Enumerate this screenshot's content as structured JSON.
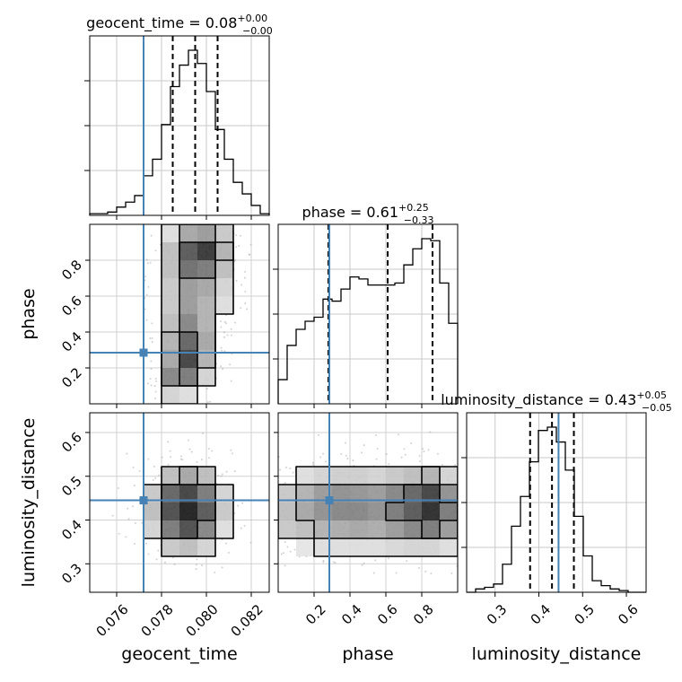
{
  "chart_data": {
    "type": "corner",
    "parameters": [
      "geocent_time",
      "phase",
      "luminosity_distance"
    ],
    "injection": {
      "geocent_time": 0.0772,
      "phase": 0.285,
      "luminosity_distance": 0.445
    },
    "truth_color": "#4682b4",
    "grid": true,
    "titles": {
      "geocent_time": {
        "name": "geocent_time",
        "value": "0.08",
        "plus": "+0.00",
        "minus": "−0.00"
      },
      "phase": {
        "name": "phase",
        "value": "0.61",
        "plus": "+0.25",
        "minus": "−0.33"
      },
      "luminosity_distance": {
        "name": "luminosity_distance",
        "value": "0.43",
        "plus": "+0.05",
        "minus": "−0.05"
      }
    },
    "axes": {
      "geocent_time": {
        "label": "geocent_time",
        "range": [
          0.0748,
          0.0828
        ],
        "ticks": [
          0.076,
          0.078,
          0.08,
          0.082
        ],
        "tick_labels": [
          "0.076",
          "0.078",
          "0.080",
          "0.082"
        ]
      },
      "phase": {
        "label": "phase",
        "range": [
          0.0,
          1.0
        ],
        "ticks": [
          0.2,
          0.4,
          0.6,
          0.8
        ],
        "tick_labels": [
          "0.2",
          "0.4",
          "0.6",
          "0.8"
        ]
      },
      "luminosity_distance": {
        "label": "luminosity_distance",
        "range": [
          0.235,
          0.645
        ],
        "ticks": [
          0.3,
          0.4,
          0.5,
          0.6
        ],
        "tick_labels": [
          "0.3",
          "0.4",
          "0.5",
          "0.6"
        ]
      }
    },
    "marginals": {
      "geocent_time": {
        "bin_edges": [
          0.0748,
          0.0752,
          0.0756,
          0.076,
          0.0764,
          0.0768,
          0.0772,
          0.0776,
          0.078,
          0.0784,
          0.0788,
          0.0792,
          0.0796,
          0.08,
          0.0804,
          0.0808,
          0.0812,
          0.0816,
          0.082,
          0.0824,
          0.0828
        ],
        "counts": [
          0.01,
          0.01,
          0.02,
          0.05,
          0.08,
          0.12,
          0.24,
          0.34,
          0.55,
          0.78,
          0.91,
          1.0,
          0.92,
          0.75,
          0.52,
          0.34,
          0.2,
          0.13,
          0.06,
          0.01
        ],
        "quantiles": [
          0.0785,
          0.0795,
          0.0805
        ]
      },
      "phase": {
        "bin_edges": [
          0.0,
          0.05,
          0.1,
          0.15,
          0.2,
          0.25,
          0.3,
          0.35,
          0.4,
          0.45,
          0.5,
          0.55,
          0.6,
          0.65,
          0.7,
          0.75,
          0.8,
          0.85,
          0.9,
          0.95,
          1.0
        ],
        "counts": [
          0.12,
          0.29,
          0.37,
          0.41,
          0.43,
          0.52,
          0.51,
          0.57,
          0.63,
          0.62,
          0.59,
          0.59,
          0.59,
          0.6,
          0.69,
          0.77,
          0.82,
          0.81,
          0.6,
          0.4
        ],
        "quantiles": [
          0.28,
          0.61,
          0.86
        ]
      },
      "luminosity_distance": {
        "bin_edges": [
          0.235,
          0.2555,
          0.276,
          0.2965,
          0.317,
          0.3375,
          0.358,
          0.3785,
          0.399,
          0.4195,
          0.44,
          0.4605,
          0.481,
          0.5015,
          0.522,
          0.5425,
          0.563,
          0.5835,
          0.604,
          0.6245,
          0.645
        ],
        "counts": [
          0.0,
          0.02,
          0.03,
          0.05,
          0.17,
          0.4,
          0.58,
          0.79,
          0.98,
          1.0,
          0.91,
          0.74,
          0.46,
          0.22,
          0.07,
          0.04,
          0.02,
          0.01,
          0.0,
          0.0
        ],
        "quantiles": [
          0.38,
          0.43,
          0.48
        ]
      }
    },
    "density_2d": {
      "phase_vs_geocent_time": {
        "x_edges": [
          0.0748,
          0.0756,
          0.0764,
          0.0772,
          0.078,
          0.0788,
          0.0796,
          0.0804,
          0.0812,
          0.082,
          0.0828
        ],
        "y_edges": [
          0.0,
          0.1,
          0.2,
          0.3,
          0.4,
          0.5,
          0.6,
          0.7,
          0.8,
          0.9,
          1.0
        ],
        "cells": [
          [
            0,
            0,
            0,
            0.05,
            0.2,
            0.15,
            0.05,
            0,
            0,
            0
          ],
          [
            0,
            0,
            0,
            0.1,
            0.55,
            0.6,
            0.2,
            0.05,
            0,
            0
          ],
          [
            0,
            0,
            0,
            0.05,
            0.4,
            0.85,
            0.35,
            0.1,
            0,
            0
          ],
          [
            0,
            0,
            0,
            0.05,
            0.35,
            0.7,
            0.4,
            0.1,
            0,
            0
          ],
          [
            0,
            0,
            0,
            0.05,
            0.3,
            0.55,
            0.35,
            0.1,
            0.02,
            0
          ],
          [
            0,
            0,
            0,
            0.05,
            0.25,
            0.45,
            0.35,
            0.15,
            0.05,
            0
          ],
          [
            0,
            0,
            0,
            0.05,
            0.25,
            0.45,
            0.4,
            0.2,
            0.05,
            0
          ],
          [
            0,
            0,
            0,
            0.05,
            0.3,
            0.65,
            0.6,
            0.3,
            0.08,
            0
          ],
          [
            0,
            0,
            0,
            0.05,
            0.3,
            0.75,
            0.9,
            0.35,
            0.1,
            0
          ],
          [
            0,
            0,
            0,
            0.02,
            0.15,
            0.4,
            0.45,
            0.25,
            0.05,
            0
          ]
        ]
      },
      "luminosity_distance_vs_geocent_time": {
        "x_edges": [
          0.0748,
          0.0756,
          0.0764,
          0.0772,
          0.078,
          0.0788,
          0.0796,
          0.0804,
          0.0812,
          0.082,
          0.0828
        ],
        "y_edges": [
          0.235,
          0.276,
          0.317,
          0.358,
          0.399,
          0.44,
          0.481,
          0.522,
          0.563,
          0.604,
          0.645
        ],
        "cells": [
          [
            0,
            0,
            0,
            0,
            0,
            0,
            0,
            0,
            0,
            0
          ],
          [
            0,
            0,
            0,
            0.02,
            0.05,
            0.05,
            0.03,
            0.01,
            0,
            0
          ],
          [
            0,
            0,
            0.02,
            0.08,
            0.25,
            0.3,
            0.2,
            0.05,
            0.01,
            0
          ],
          [
            0,
            0.01,
            0.05,
            0.2,
            0.6,
            0.8,
            0.55,
            0.15,
            0.03,
            0
          ],
          [
            0,
            0.01,
            0.06,
            0.3,
            0.8,
            1.0,
            0.75,
            0.25,
            0.05,
            0
          ],
          [
            0,
            0.01,
            0.05,
            0.25,
            0.7,
            0.85,
            0.6,
            0.2,
            0.04,
            0
          ],
          [
            0,
            0,
            0.03,
            0.1,
            0.3,
            0.4,
            0.3,
            0.1,
            0.02,
            0
          ],
          [
            0,
            0,
            0.01,
            0.03,
            0.08,
            0.1,
            0.08,
            0.03,
            0,
            0
          ],
          [
            0,
            0,
            0,
            0,
            0.02,
            0.02,
            0.02,
            0,
            0,
            0
          ],
          [
            0,
            0,
            0,
            0,
            0,
            0,
            0,
            0,
            0,
            0
          ]
        ]
      },
      "luminosity_distance_vs_phase": {
        "x_edges": [
          0.0,
          0.1,
          0.2,
          0.3,
          0.4,
          0.5,
          0.6,
          0.7,
          0.8,
          0.9,
          1.0
        ],
        "y_edges": [
          0.235,
          0.276,
          0.317,
          0.358,
          0.399,
          0.44,
          0.481,
          0.522,
          0.563,
          0.604,
          0.645
        ],
        "cells": [
          [
            0,
            0,
            0,
            0,
            0,
            0,
            0,
            0,
            0,
            0
          ],
          [
            0.02,
            0.02,
            0.03,
            0.03,
            0.03,
            0.03,
            0.03,
            0.04,
            0.04,
            0.03
          ],
          [
            0.1,
            0.12,
            0.15,
            0.15,
            0.15,
            0.15,
            0.18,
            0.2,
            0.2,
            0.15
          ],
          [
            0.25,
            0.3,
            0.35,
            0.38,
            0.4,
            0.38,
            0.45,
            0.55,
            0.6,
            0.45
          ],
          [
            0.3,
            0.4,
            0.5,
            0.55,
            0.55,
            0.5,
            0.6,
            0.75,
            0.95,
            0.6
          ],
          [
            0.25,
            0.35,
            0.45,
            0.5,
            0.48,
            0.45,
            0.55,
            0.7,
            0.85,
            0.5
          ],
          [
            0.1,
            0.15,
            0.2,
            0.22,
            0.22,
            0.2,
            0.25,
            0.3,
            0.35,
            0.2
          ],
          [
            0.02,
            0.04,
            0.05,
            0.06,
            0.06,
            0.05,
            0.06,
            0.08,
            0.08,
            0.05
          ],
          [
            0,
            0,
            0.01,
            0.01,
            0.01,
            0.01,
            0.01,
            0.01,
            0.01,
            0
          ],
          [
            0,
            0,
            0,
            0,
            0,
            0,
            0,
            0,
            0,
            0
          ]
        ]
      }
    }
  }
}
